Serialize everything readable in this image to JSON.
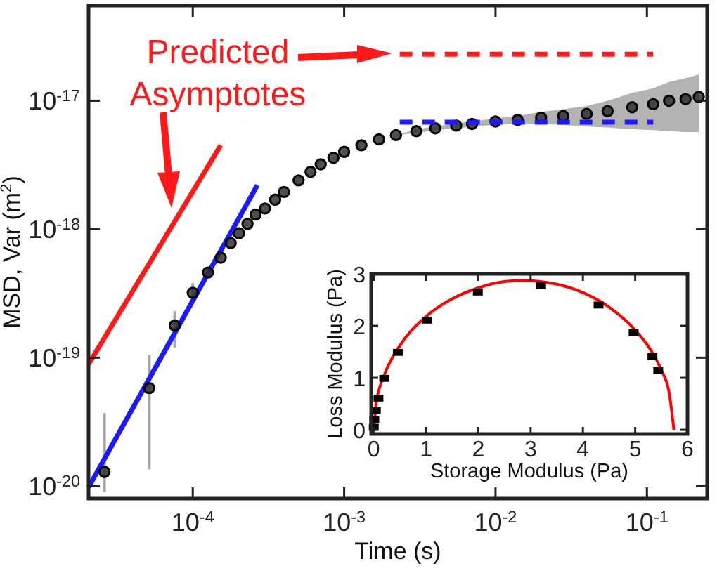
{
  "chart_data": [
    {
      "type": "scatter",
      "xlabel": "Time (s)",
      "ylabel": "MSD, Var (m$^{2}$)",
      "log": "xy",
      "grid": false,
      "xlim": [
        2.05e-05,
        0.25
      ],
      "ylim": [
        8e-21,
        5.5e-17
      ],
      "xticks": [
        {
          "value": 0.0001,
          "label": "10$^{-4}$"
        },
        {
          "value": 0.001,
          "label": "10$^{-3}$"
        },
        {
          "value": 0.01,
          "label": "10$^{-2}$"
        },
        {
          "value": 0.1,
          "label": "10$^{-1}$"
        }
      ],
      "yticks": [
        {
          "value": 1e-20,
          "label": "10$^{-20}$"
        },
        {
          "value": 1e-19,
          "label": "10$^{-19}$"
        },
        {
          "value": 1e-18,
          "label": "10$^{-18}$"
        },
        {
          "value": 1e-17,
          "label": "10$^{-17}$"
        }
      ],
      "annotations": [
        "Predicted Asymptotes"
      ],
      "series": [
        {
          "type": "line",
          "color": "#ff1a1a",
          "line_style": "solid",
          "x": [
            2.05e-05,
            0.000153
          ],
          "values": [
            8.9e-20,
            4.5e-18
          ]
        },
        {
          "type": "line",
          "color": "#1a1aff",
          "line_style": "solid",
          "x": [
            2.05e-05,
            0.000267
          ],
          "values": [
            9.8e-21,
            2.2e-18
          ]
        },
        {
          "color": "#303030",
          "marker": "circle",
          "x": [
            2.61e-05,
            5.16e-05,
            7.6e-05,
            0.0001,
            0.000126,
            0.000153,
            0.000178,
            0.000202
          ],
          "values": [
            1.29e-20,
            5.8e-20,
            1.78e-19,
            3.2e-19,
            4.6e-19,
            6e-19,
            7.8e-19,
            9.3e-19
          ],
          "errors": [
            [
              9e-21,
              3.7e-20
            ],
            [
              1.35e-20,
              1.05e-19
            ],
            [
              1.2e-19,
              2.3e-19
            ],
            [
              2.7e-19,
              3.8e-19
            ],
            null,
            null,
            null,
            null
          ]
        },
        {
          "color": "#303030",
          "marker": "circle",
          "x": [
            0.00023,
            0.00026,
            0.0003,
            0.00035,
            0.0004,
            0.0005,
            0.0006,
            0.0007,
            0.00085,
            0.001,
            0.0013,
            0.0017,
            0.0022,
            0.003,
            0.004,
            0.0055,
            0.007,
            0.01,
            0.014,
            0.02,
            0.028,
            0.04,
            0.055,
            0.08,
            0.11,
            0.14,
            0.18,
            0.22
          ],
          "values": [
            1.1e-18,
            1.3e-18,
            1.45e-18,
            1.7e-18,
            1.95e-18,
            2.4e-18,
            2.8e-18,
            3.2e-18,
            3.6e-18,
            4e-18,
            4.5e-18,
            5e-18,
            5.4e-18,
            5.8e-18,
            6.1e-18,
            6.4e-18,
            6.6e-18,
            6.9e-18,
            7.1e-18,
            7.4e-18,
            7.6e-18,
            7.9e-18,
            8.3e-18,
            8.9e-18,
            9.4e-18,
            1e-17,
            1.03e-17,
            1.07e-17
          ],
          "lower": [
            1.1e-18,
            1.3e-18,
            1.45e-18,
            1.7e-18,
            1.95e-18,
            2.4e-18,
            2.8e-18,
            3.2e-18,
            3.6e-18,
            4e-18,
            4.5e-18,
            5e-18,
            5.4e-18,
            5.6e-18,
            5.9e-18,
            6.1e-18,
            6.3e-18,
            6.5e-18,
            6.6e-18,
            6.6e-18,
            6.5e-18,
            6.3e-18,
            6.2e-18,
            6e-18,
            5.9e-18,
            5.8e-18,
            5.7e-18,
            5.7e-18
          ],
          "upper": [
            1.1e-18,
            1.3e-18,
            1.45e-18,
            1.7e-18,
            1.95e-18,
            2.4e-18,
            2.8e-18,
            3.2e-18,
            3.6e-18,
            4e-18,
            4.5e-18,
            5e-18,
            5.4e-18,
            6e-18,
            6.3e-18,
            6.7e-18,
            6.9e-18,
            7.3e-18,
            7.6e-18,
            8.2e-18,
            8.6e-18,
            9.1e-18,
            1e-17,
            1.15e-17,
            1.25e-17,
            1.4e-17,
            1.5e-17,
            1.6e-17
          ]
        },
        {
          "type": "line",
          "color": "#ff1a1a",
          "line_style": "dashed",
          "x": [
            0.00233,
            0.11
          ],
          "values": [
            2.3e-17,
            2.3e-17
          ]
        },
        {
          "type": "line",
          "color": "#1a1aff",
          "line_style": "dashed",
          "x": [
            0.00233,
            0.11
          ],
          "values": [
            6.8e-18,
            6.8e-18
          ]
        }
      ]
    },
    {
      "type": "scatter",
      "xlabel": "Storage Modulus (Pa)",
      "ylabel": "Loss Modulus (Pa)",
      "grid": false,
      "xlim": [
        -0.05,
        6
      ],
      "ylim": [
        -0.08,
        3
      ],
      "xticks": [
        0,
        1,
        2,
        3,
        4,
        5,
        6
      ],
      "yticks": [
        0,
        1,
        2,
        3
      ],
      "series": [
        {
          "type": "line",
          "color": "#ff0000",
          "line_style": "solid",
          "x": [
            0,
            0.05,
            0.2,
            0.5,
            1,
            1.5,
            2,
            2.5,
            2.87,
            3.5,
            4,
            4.5,
            5,
            5.3,
            5.5,
            5.65,
            5.74
          ],
          "values": [
            0,
            0.53,
            1.05,
            1.62,
            2.18,
            2.52,
            2.73,
            2.85,
            2.87,
            2.8,
            2.64,
            2.36,
            1.92,
            1.53,
            1.15,
            0.71,
            0
          ]
        },
        {
          "color": "#000000",
          "marker": "square",
          "x": [
            0,
            0.01,
            0.04,
            0.09,
            0.2,
            0.46,
            1.02,
            1.99,
            3.2,
            4.3,
            4.97,
            5.33,
            5.44
          ],
          "values": [
            0.05,
            0.2,
            0.37,
            0.61,
            0.99,
            1.49,
            2.11,
            2.65,
            2.77,
            2.4,
            1.87,
            1.41,
            1.14
          ]
        }
      ]
    }
  ]
}
